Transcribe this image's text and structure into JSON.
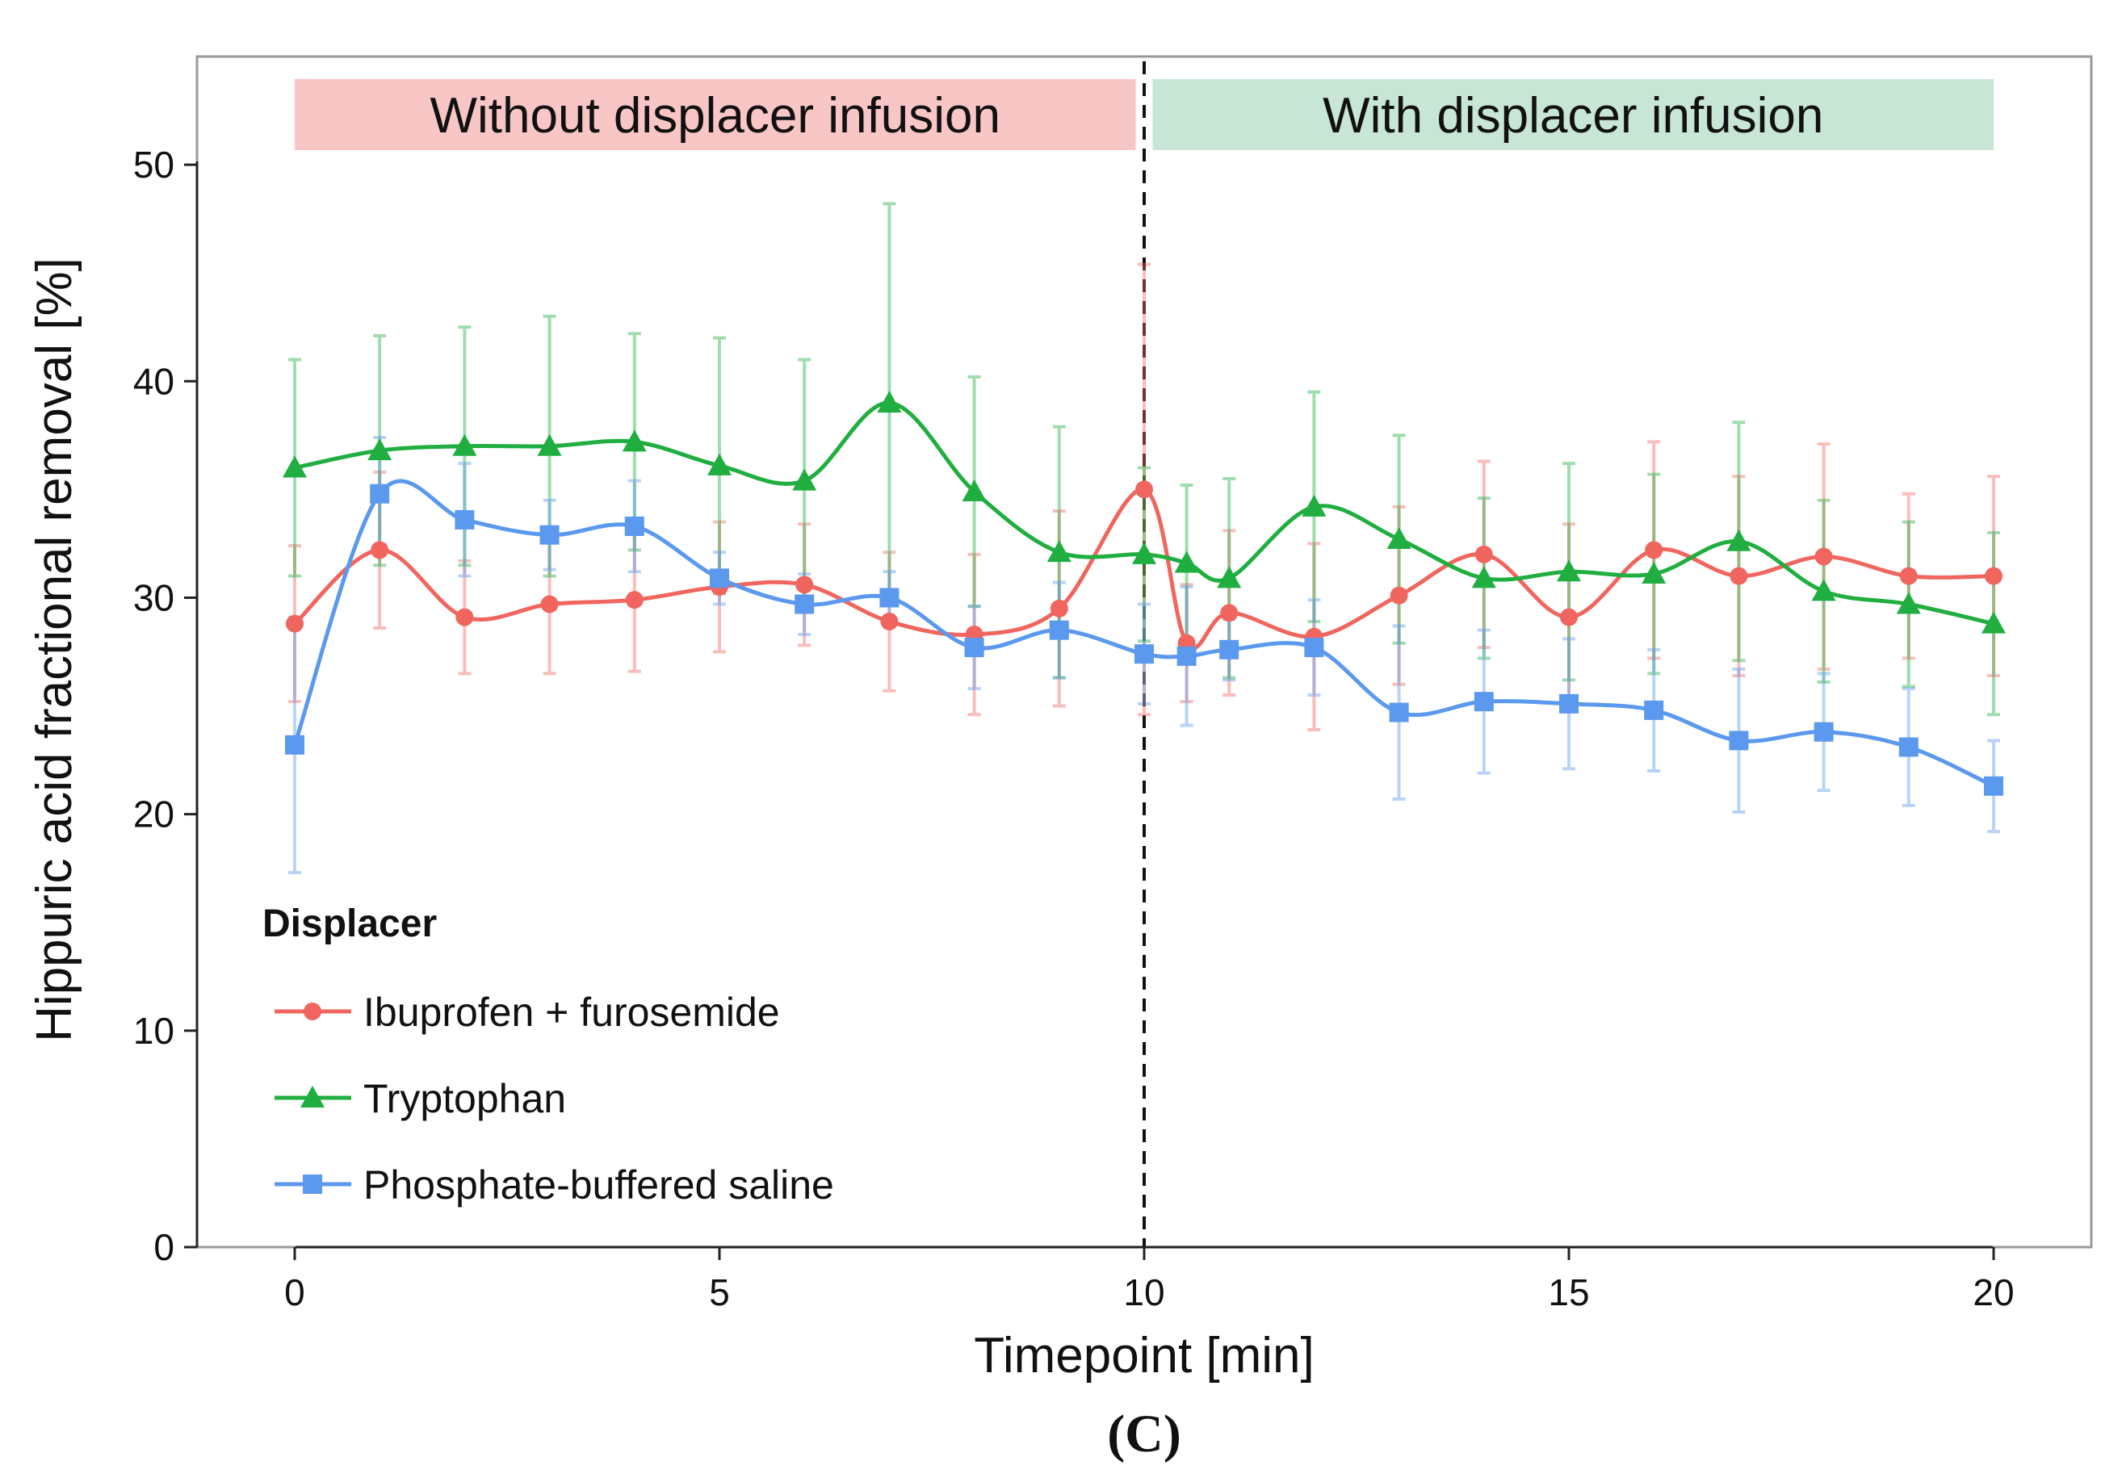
{
  "chart_data": {
    "type": "line",
    "xlabel": "Timepoint [min]",
    "ylabel": "Hippuric acid fractional removal [%]",
    "xlim": [
      -1.15,
      21.15
    ],
    "ylim": [
      0,
      55
    ],
    "x_ticks": [
      0,
      5,
      10,
      15,
      20
    ],
    "y_ticks": [
      0,
      10,
      20,
      30,
      40,
      50
    ],
    "grid": false,
    "panel_label": "(C)",
    "vline": {
      "x": 10,
      "style": "dashed"
    },
    "bands": [
      {
        "label": "Without displacer infusion",
        "x_start": 0,
        "x_end": 9.9,
        "color": "#f8c6c5"
      },
      {
        "label": "With displacer infusion",
        "x_start": 10.1,
        "x_end": 20,
        "color": "#c8e6d6"
      }
    ],
    "legend": {
      "title": "Displacer",
      "position": "bottom-left"
    },
    "series": [
      {
        "name": "Ibuprofen + furosemide",
        "color": "#f0665e",
        "marker": "circle",
        "x": [
          0,
          1,
          2,
          3,
          4,
          5,
          6,
          7,
          8,
          9,
          10,
          10.5,
          11,
          12,
          13,
          14,
          15,
          16,
          17,
          18,
          19,
          20
        ],
        "y": [
          28.8,
          32.2,
          29.1,
          29.7,
          29.9,
          30.5,
          30.6,
          28.9,
          28.3,
          29.5,
          35.0,
          27.9,
          29.3,
          28.2,
          30.1,
          32.0,
          29.1,
          32.2,
          31.0,
          31.9,
          31.0,
          31.0
        ],
        "err": [
          3.6,
          3.6,
          2.6,
          3.2,
          3.3,
          3.0,
          2.8,
          3.2,
          3.7,
          4.5,
          10.4,
          2.7,
          3.8,
          4.3,
          4.1,
          4.3,
          4.3,
          5.0,
          4.6,
          5.2,
          3.8,
          4.6
        ]
      },
      {
        "name": "Tryptophan",
        "color": "#1fae3f",
        "marker": "triangle",
        "x": [
          0,
          1,
          2,
          3,
          4,
          5,
          6,
          7,
          8,
          9,
          10,
          10.5,
          11,
          12,
          13,
          14,
          15,
          16,
          17,
          18,
          19,
          20
        ],
        "y": [
          36.0,
          36.8,
          37.0,
          37.0,
          37.2,
          36.1,
          35.4,
          39.0,
          34.9,
          32.1,
          32.0,
          31.6,
          30.9,
          34.2,
          32.7,
          30.9,
          31.2,
          31.1,
          32.6,
          30.3,
          29.7,
          28.8
        ],
        "err": [
          5.0,
          5.3,
          5.5,
          6.0,
          5.0,
          5.9,
          5.6,
          9.2,
          5.3,
          5.8,
          4.0,
          3.6,
          4.6,
          5.3,
          4.8,
          3.7,
          5.0,
          4.6,
          5.5,
          4.2,
          3.8,
          4.2
        ]
      },
      {
        "name": "Phosphate-buffered saline",
        "color": "#5b99ee",
        "marker": "square",
        "x": [
          0,
          1,
          2,
          3,
          4,
          5,
          6,
          7,
          8,
          9,
          10,
          10.5,
          11,
          12,
          13,
          14,
          15,
          16,
          17,
          18,
          19,
          20
        ],
        "y": [
          23.2,
          34.8,
          33.6,
          32.9,
          33.3,
          30.9,
          29.7,
          30.0,
          27.7,
          28.5,
          27.4,
          27.3,
          27.6,
          27.7,
          24.7,
          25.2,
          25.1,
          24.8,
          23.4,
          23.8,
          23.1,
          21.3
        ],
        "err": [
          5.9,
          2.6,
          2.6,
          1.6,
          2.1,
          1.2,
          1.4,
          1.2,
          1.9,
          2.2,
          2.3,
          3.2,
          1.4,
          2.2,
          4.0,
          3.3,
          3.0,
          2.8,
          3.3,
          2.7,
          2.7,
          2.1
        ]
      }
    ]
  }
}
